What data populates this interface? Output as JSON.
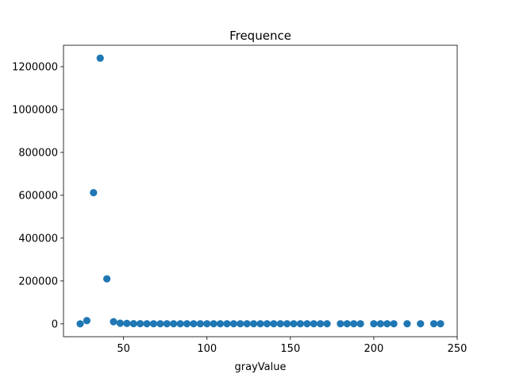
{
  "chart_data": {
    "type": "scatter",
    "title": "Frequence",
    "xlabel": "grayValue",
    "ylabel": "",
    "xlim": [
      14,
      250
    ],
    "ylim": [
      -60000,
      1300000
    ],
    "xticks": [
      50,
      100,
      150,
      200,
      250
    ],
    "yticks": [
      0,
      200000,
      400000,
      600000,
      800000,
      1000000,
      1200000
    ],
    "grid": false,
    "marker_color": "#1f77b4",
    "series": [
      {
        "x": [
          24,
          28,
          32,
          36,
          40,
          44,
          48,
          52,
          56,
          60,
          64,
          68,
          72,
          76,
          80,
          84,
          88,
          92,
          96,
          100,
          104,
          108,
          112,
          116,
          120,
          124,
          128,
          132,
          136,
          140,
          144,
          148,
          152,
          156,
          160,
          164,
          168,
          172,
          180,
          184,
          188,
          192,
          200,
          204,
          208,
          212,
          220,
          228,
          236,
          240
        ],
        "y": [
          0,
          15000,
          612000,
          1240000,
          210000,
          10000,
          3000,
          2000,
          1000,
          1000,
          500,
          500,
          500,
          500,
          500,
          500,
          500,
          500,
          500,
          500,
          500,
          500,
          500,
          500,
          500,
          500,
          500,
          500,
          500,
          500,
          500,
          500,
          500,
          500,
          500,
          500,
          500,
          500,
          500,
          500,
          500,
          500,
          500,
          500,
          500,
          500,
          500,
          500,
          500,
          500
        ]
      }
    ]
  }
}
